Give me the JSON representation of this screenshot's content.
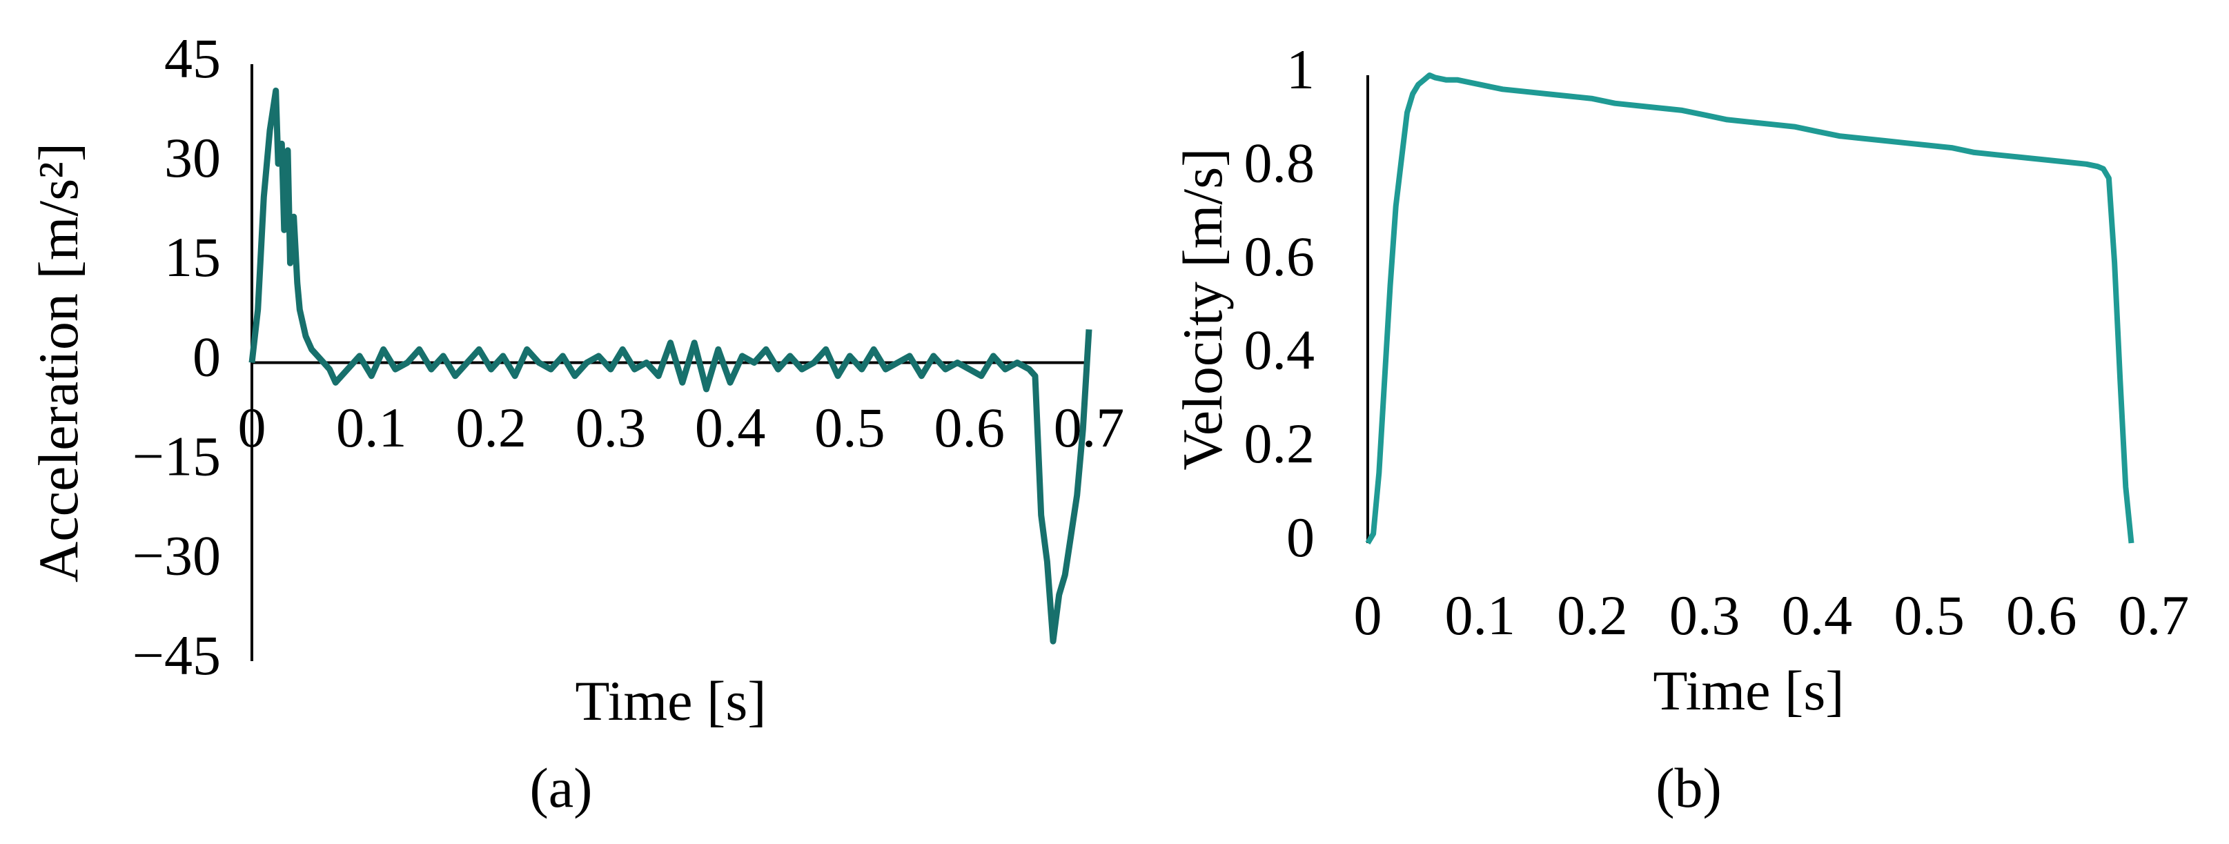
{
  "chart_data": [
    {
      "type": "line",
      "caption": "(a)",
      "x_label": "Time [s]",
      "y_label": "Acceleration [m/s²]",
      "color": "#17706c",
      "xlim": [
        0,
        0.7
      ],
      "ylim": [
        -45,
        45
      ],
      "xticks": [
        0,
        0.1,
        0.2,
        0.3,
        0.4,
        0.5,
        0.6,
        0.7
      ],
      "yticks": [
        {
          "value": -45,
          "label": "−45"
        },
        {
          "value": -30,
          "label": "−30"
        },
        {
          "value": -15,
          "label": "−15"
        },
        0,
        15,
        30,
        45
      ],
      "x": [
        0,
        0.005,
        0.01,
        0.015,
        0.02,
        0.022,
        0.025,
        0.027,
        0.03,
        0.032,
        0.035,
        0.038,
        0.04,
        0.045,
        0.05,
        0.055,
        0.06,
        0.065,
        0.07,
        0.08,
        0.09,
        0.1,
        0.11,
        0.12,
        0.13,
        0.14,
        0.15,
        0.16,
        0.17,
        0.18,
        0.19,
        0.2,
        0.21,
        0.22,
        0.23,
        0.24,
        0.25,
        0.26,
        0.27,
        0.28,
        0.29,
        0.3,
        0.31,
        0.32,
        0.33,
        0.34,
        0.35,
        0.36,
        0.37,
        0.38,
        0.39,
        0.4,
        0.41,
        0.42,
        0.43,
        0.44,
        0.45,
        0.46,
        0.47,
        0.48,
        0.49,
        0.5,
        0.51,
        0.52,
        0.53,
        0.54,
        0.55,
        0.56,
        0.57,
        0.58,
        0.59,
        0.6,
        0.61,
        0.62,
        0.63,
        0.64,
        0.65,
        0.655,
        0.66,
        0.665,
        0.67,
        0.675,
        0.68,
        0.685,
        0.69,
        0.695,
        0.7
      ],
      "values": [
        0,
        8,
        25,
        35,
        41,
        30,
        33,
        20,
        32,
        15,
        22,
        12,
        8,
        4,
        2,
        1,
        0,
        -1,
        -3,
        -1,
        1,
        -2,
        2,
        -1,
        0,
        2,
        -1,
        1,
        -2,
        0,
        2,
        -1,
        1,
        -2,
        2,
        0,
        -1,
        1,
        -2,
        0,
        1,
        -1,
        2,
        -1,
        0,
        -2,
        3,
        -3,
        3,
        -4,
        2,
        -3,
        1,
        0,
        2,
        -1,
        1,
        -1,
        0,
        2,
        -2,
        1,
        -1,
        2,
        -1,
        0,
        1,
        -2,
        1,
        -1,
        0,
        -1,
        -2,
        1,
        -1,
        0,
        -1,
        -2,
        -23,
        -30,
        -42,
        -35,
        -32,
        -26,
        -20,
        -10,
        5
      ]
    },
    {
      "type": "line",
      "caption": "(b)",
      "x_label": "Time [s]",
      "y_label": "Velocity [m/s]",
      "color": "#1f9a94",
      "xlim": [
        0,
        0.7
      ],
      "ylim": [
        0,
        1
      ],
      "xticks": [
        0,
        0.1,
        0.2,
        0.3,
        0.4,
        0.5,
        0.6,
        0.7
      ],
      "yticks": [
        0,
        0.2,
        0.4,
        0.6,
        0.8,
        1
      ],
      "x": [
        0,
        0.005,
        0.01,
        0.015,
        0.02,
        0.025,
        0.03,
        0.035,
        0.04,
        0.045,
        0.05,
        0.055,
        0.06,
        0.07,
        0.08,
        0.09,
        0.1,
        0.12,
        0.14,
        0.16,
        0.18,
        0.2,
        0.22,
        0.24,
        0.26,
        0.28,
        0.3,
        0.32,
        0.34,
        0.36,
        0.38,
        0.4,
        0.42,
        0.44,
        0.46,
        0.48,
        0.5,
        0.52,
        0.54,
        0.56,
        0.58,
        0.6,
        0.62,
        0.64,
        0.65,
        0.655,
        0.66,
        0.665,
        0.67,
        0.675,
        0.68
      ],
      "values": [
        0,
        0.02,
        0.15,
        0.35,
        0.55,
        0.72,
        0.82,
        0.92,
        0.96,
        0.98,
        0.99,
        1,
        0.995,
        0.99,
        0.99,
        0.985,
        0.98,
        0.97,
        0.965,
        0.96,
        0.955,
        0.95,
        0.94,
        0.935,
        0.93,
        0.925,
        0.915,
        0.905,
        0.9,
        0.895,
        0.89,
        0.88,
        0.87,
        0.865,
        0.86,
        0.855,
        0.85,
        0.845,
        0.835,
        0.83,
        0.825,
        0.82,
        0.815,
        0.81,
        0.805,
        0.8,
        0.78,
        0.6,
        0.35,
        0.12,
        0
      ]
    }
  ]
}
